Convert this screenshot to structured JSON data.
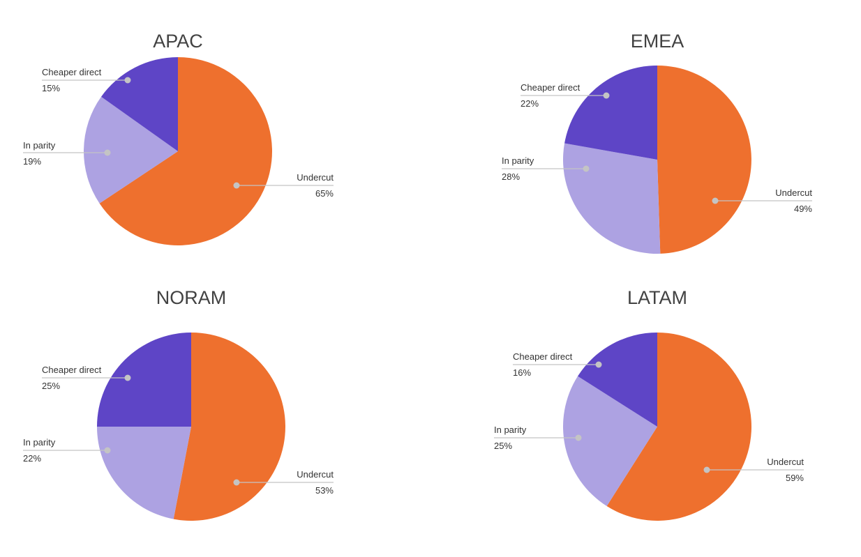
{
  "colors": {
    "Undercut": "#ee702e",
    "In parity": "#ada2e2",
    "Cheaper direct": "#5e45c6",
    "leader": "#c4c4c4",
    "title": "#424242",
    "label": "#333333"
  },
  "chart_data": [
    {
      "type": "pie",
      "title": "APAC",
      "start": "12 o'clock, clockwise",
      "slices": [
        {
          "label": "Undercut",
          "value": 65,
          "text": "65%"
        },
        {
          "label": "In parity",
          "value": 19,
          "text": "19%"
        },
        {
          "label": "Cheaper direct",
          "value": 15,
          "text": "15%"
        }
      ]
    },
    {
      "type": "pie",
      "title": "EMEA",
      "start": "12 o'clock, clockwise",
      "slices": [
        {
          "label": "Undercut",
          "value": 49,
          "text": "49%"
        },
        {
          "label": "In parity",
          "value": 28,
          "text": "28%"
        },
        {
          "label": "Cheaper direct",
          "value": 22,
          "text": "22%"
        }
      ]
    },
    {
      "type": "pie",
      "title": "NORAM",
      "start": "12 o'clock, clockwise",
      "slices": [
        {
          "label": "Undercut",
          "value": 53,
          "text": "53%"
        },
        {
          "label": "In parity",
          "value": 22,
          "text": "22%"
        },
        {
          "label": "Cheaper direct",
          "value": 25,
          "text": "25%"
        }
      ]
    },
    {
      "type": "pie",
      "title": "LATAM",
      "start": "12 o'clock, clockwise",
      "slices": [
        {
          "label": "Undercut",
          "value": 59,
          "text": "59%"
        },
        {
          "label": "In parity",
          "value": 25,
          "text": "25%"
        },
        {
          "label": "Cheaper direct",
          "value": 16,
          "text": "16%"
        }
      ]
    }
  ]
}
